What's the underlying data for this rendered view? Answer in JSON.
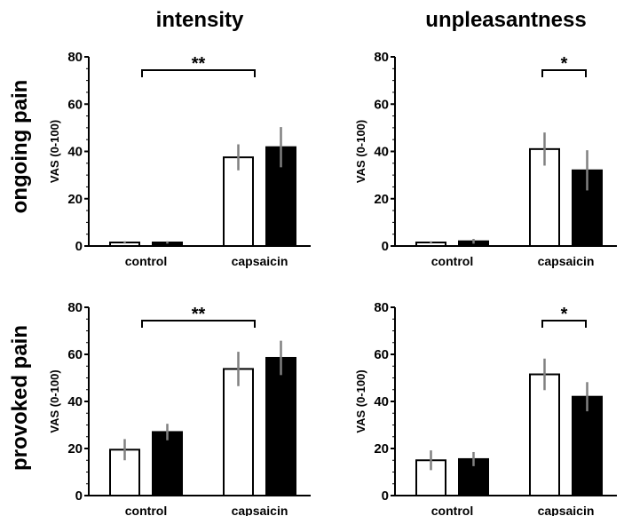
{
  "chart_data": {
    "type": "bar",
    "column_titles": [
      "intensity",
      "unpleasantness"
    ],
    "row_titles": [
      "ongoing pain",
      "provoked pain"
    ],
    "colors": {
      "series_1_fill": "#ffffff",
      "series_2_fill": "#000000",
      "error_bar": "#808080",
      "axis": "#000000"
    },
    "panels": [
      {
        "row": 0,
        "col": 0,
        "ylabel": "VAS (0-100)",
        "ylim": [
          0,
          80
        ],
        "yticks": [
          "0",
          "20",
          "40",
          "60",
          "80"
        ],
        "categories": [
          "control",
          "capsaicin"
        ],
        "series": [
          {
            "values": [
              1.5,
              37.5
            ],
            "errors": [
              0.5,
              5.5
            ]
          },
          {
            "values": [
              1.5,
              41.8
            ],
            "errors": [
              0.5,
              8.5
            ]
          }
        ],
        "significance": {
          "label": "**",
          "from": "control (open bar)",
          "to": "capsaicin (open bar)"
        }
      },
      {
        "row": 0,
        "col": 1,
        "ylabel": "VAS (0-100)",
        "ylim": [
          0,
          80
        ],
        "yticks": [
          "0",
          "20",
          "40",
          "60",
          "80"
        ],
        "categories": [
          "control",
          "capsaicin"
        ],
        "series": [
          {
            "values": [
              1.5,
              41
            ],
            "errors": [
              0.5,
              7
            ]
          },
          {
            "values": [
              2,
              32
            ],
            "errors": [
              1,
              8.5
            ]
          }
        ],
        "significance": {
          "label": "*",
          "from": "capsaicin (open bar)",
          "to": "capsaicin (filled bar)"
        }
      },
      {
        "row": 1,
        "col": 0,
        "ylabel": "VAS (0-100)",
        "ylim": [
          0,
          80
        ],
        "yticks": [
          "0",
          "20",
          "40",
          "60",
          "80"
        ],
        "categories": [
          "control",
          "capsaicin"
        ],
        "series": [
          {
            "values": [
              19.5,
              53.8
            ],
            "errors": [
              4.5,
              7.3
            ]
          },
          {
            "values": [
              27,
              58.5
            ],
            "errors": [
              3.5,
              7.3
            ]
          }
        ],
        "significance": {
          "label": "**",
          "from": "control (open bar)",
          "to": "capsaicin (open bar)"
        }
      },
      {
        "row": 1,
        "col": 1,
        "ylabel": "VAS (0-100)",
        "ylim": [
          0,
          80
        ],
        "yticks": [
          "0",
          "20",
          "40",
          "60",
          "80"
        ],
        "categories": [
          "control",
          "capsaicin"
        ],
        "series": [
          {
            "values": [
              15,
              51.5
            ],
            "errors": [
              4.2,
              6.7
            ]
          },
          {
            "values": [
              15.5,
              42
            ],
            "errors": [
              3,
              6.2
            ]
          }
        ],
        "significance": {
          "label": "*",
          "from": "capsaicin (open bar)",
          "to": "capsaicin (filled bar)"
        }
      }
    ]
  }
}
